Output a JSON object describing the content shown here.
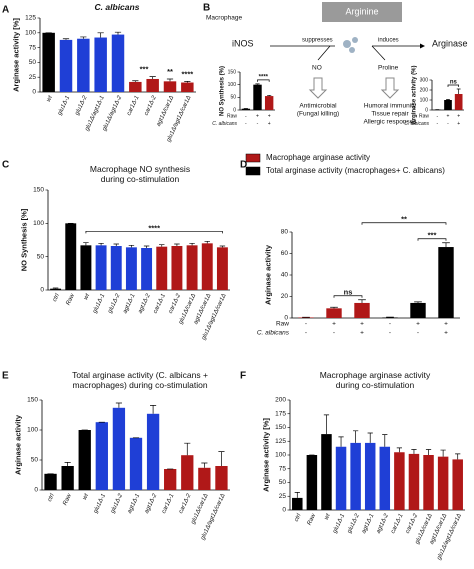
{
  "chart_data": [
    {
      "type": "bar",
      "label": "A",
      "title": "C. albicans",
      "ylabel": "Arginase activity [%]",
      "categories": [
        "wt",
        "glu1Δ-1",
        "glu1Δ-2",
        "glu1Δ/agt1Δ-1",
        "glu1Δ/agt1Δ-2",
        "car1Δ-1",
        "car1Δ-2",
        "agt1Δ/car1Δ",
        "glu1Δ/agt1Δ/car1Δ"
      ],
      "values": [
        100,
        88,
        90,
        92,
        97,
        17,
        22,
        18,
        16
      ],
      "errors": [
        0,
        2,
        3,
        8,
        4,
        2,
        4,
        4,
        2
      ],
      "colors": [
        "#000000",
        "#1f3fd6",
        "#1f3fd6",
        "#1f3fd6",
        "#1f3fd6",
        "#b01818",
        "#b01818",
        "#b01818",
        "#b01818"
      ],
      "ylim": [
        0,
        125
      ],
      "yticks": [
        0,
        25,
        50,
        75,
        100,
        125
      ],
      "annotations": [
        "***",
        "**",
        "****"
      ]
    },
    {
      "type": "bar",
      "ylabel": "NO Synthesis (%)",
      "values": [
        5,
        100,
        55
      ],
      "errors": [
        1,
        3,
        3
      ],
      "colors": [
        "#000000",
        "#000000",
        "#b01818"
      ],
      "ylim": [
        0,
        150
      ],
      "yticks": [
        0,
        50,
        100,
        150
      ],
      "rows": [
        {
          "name": "Raw",
          "marks": [
            "-",
            "+",
            "+"
          ]
        },
        {
          "name": "C. albicans",
          "marks": [
            "-",
            "-",
            "+"
          ]
        }
      ],
      "annotations": [
        "****"
      ]
    },
    {
      "type": "bar",
      "ylabel": "Arginase activity (%)",
      "values": [
        3,
        100,
        160
      ],
      "errors": [
        1,
        5,
        50
      ],
      "colors": [
        "#000000",
        "#000000",
        "#b01818"
      ],
      "ylim": [
        0,
        300
      ],
      "yticks": [
        0,
        100,
        200,
        300
      ],
      "rows": [
        {
          "name": "Raw",
          "marks": [
            "-",
            "+",
            "+"
          ]
        },
        {
          "name": "C. albicans",
          "marks": [
            "-",
            "-",
            "+"
          ]
        }
      ],
      "annotations": [
        "ns"
      ]
    },
    {
      "type": "bar",
      "label": "C",
      "title": "Macrophage NO synthesis during co-stimulation",
      "ylabel": "NO Synthesis [%]",
      "categories": [
        "ctrl",
        "Raw",
        "wt",
        "glu1Δ-1",
        "glu1Δ-2",
        "agt1Δ-1",
        "agt1Δ-2",
        "car1Δ-1",
        "car1Δ-2",
        "glu1Δ/car1Δ",
        "agt1Δ/car1Δ",
        "glu1Δ/agt1Δ/car1Δ"
      ],
      "values": [
        2,
        100,
        67,
        67,
        66,
        64,
        63,
        65,
        66,
        67,
        70,
        64
      ],
      "errors": [
        1,
        0,
        4,
        3,
        3,
        3,
        3,
        3,
        3,
        3,
        3,
        2
      ],
      "colors": [
        "#000000",
        "#000000",
        "#000000",
        "#1f3fd6",
        "#1f3fd6",
        "#1f3fd6",
        "#1f3fd6",
        "#b01818",
        "#b01818",
        "#b01818",
        "#b01818",
        "#b01818"
      ],
      "ylim": [
        0,
        150
      ],
      "yticks": [
        0,
        50,
        100,
        150
      ],
      "annotations": [
        "****"
      ]
    },
    {
      "type": "bar",
      "label": "D",
      "ylabel": "Arginase activity",
      "series": [
        {
          "name": "Macrophage arginase activity",
          "color": "#b01818",
          "values": [
            0.5,
            9,
            14,
            null,
            null,
            null
          ],
          "errors": [
            0.2,
            1,
            3,
            null,
            null,
            null
          ]
        },
        {
          "name": "Total arginase activity (macrophages+ C. albicans)",
          "color": "#000000",
          "values": [
            null,
            null,
            null,
            0.5,
            14,
            66
          ],
          "errors": [
            null,
            null,
            null,
            0.3,
            1,
            4
          ]
        }
      ],
      "ylim": [
        0,
        80
      ],
      "yticks": [
        0,
        20,
        40,
        60,
        80
      ],
      "rows": [
        {
          "name": "Raw",
          "marks": [
            "-",
            "+",
            "+",
            "-",
            "+",
            "+"
          ]
        },
        {
          "name": "C. albicans",
          "marks": [
            "-",
            "-",
            "+",
            "-",
            "-",
            "+"
          ]
        }
      ],
      "annotations": [
        "ns",
        "**",
        "***"
      ]
    },
    {
      "type": "bar",
      "label": "E",
      "title": "Total arginase activity (C. albicans + macrophages) during co-stimulation",
      "ylabel": "Arginase activity",
      "categories": [
        "ctrl",
        "Raw",
        "wt",
        "glu1Δ-1",
        "glu1Δ-2",
        "agt1Δ-1",
        "agt1Δ-2",
        "car1Δ-1",
        "car1Δ-2",
        "glu1Δ/car1Δ",
        "glu1Δ/agt1Δ/car1Δ"
      ],
      "values": [
        27,
        40,
        100,
        113,
        137,
        87,
        127,
        35,
        58,
        37,
        40
      ],
      "errors": [
        0,
        6,
        0,
        0,
        8,
        0,
        14,
        0,
        20,
        8,
        24
      ],
      "colors": [
        "#000000",
        "#000000",
        "#000000",
        "#1f3fd6",
        "#1f3fd6",
        "#1f3fd6",
        "#1f3fd6",
        "#b01818",
        "#b01818",
        "#b01818",
        "#b01818"
      ],
      "ylim": [
        0,
        150
      ],
      "yticks": [
        0,
        50,
        100,
        150
      ]
    },
    {
      "type": "bar",
      "label": "F",
      "title": "Macrophage arginase activity during co-stimulation",
      "ylabel": "Arginase activity [%]",
      "categories": [
        "ctrl",
        "Raw",
        "wt",
        "glu1Δ-1",
        "glu1Δ-2",
        "agt1Δ-1",
        "agt1Δ-2",
        "car1Δ-1",
        "car1Δ-2",
        "glu1Δ/car1Δ",
        "agt1Δ/car1Δ",
        "glu1Δ/agt1Δ/car1Δ"
      ],
      "values": [
        22,
        100,
        138,
        115,
        122,
        122,
        115,
        105,
        102,
        100,
        97,
        92
      ],
      "errors": [
        10,
        0,
        35,
        18,
        22,
        18,
        22,
        8,
        8,
        10,
        12,
        10
      ],
      "colors": [
        "#000000",
        "#000000",
        "#000000",
        "#1f3fd6",
        "#1f3fd6",
        "#1f3fd6",
        "#1f3fd6",
        "#b01818",
        "#b01818",
        "#b01818",
        "#b01818",
        "#b01818"
      ],
      "ylim": [
        0,
        200
      ],
      "yticks": [
        0,
        25,
        50,
        75,
        100,
        125,
        150,
        175,
        200
      ]
    }
  ],
  "diagram": {
    "label": "B",
    "macrophage": "Macrophage",
    "arginine": "Arginine",
    "inos": "iNOS",
    "suppresses": "suppresses",
    "induces": "induces",
    "arginase": "Arginase",
    "no": "NO",
    "proline": "Proline",
    "antimicrobial": "Antimicrobial",
    "fungal_killing": "(Fungal killing)",
    "humoral": "Humoral immunity",
    "tissue": "Tissue repair",
    "allergic": "Allergic responses"
  }
}
